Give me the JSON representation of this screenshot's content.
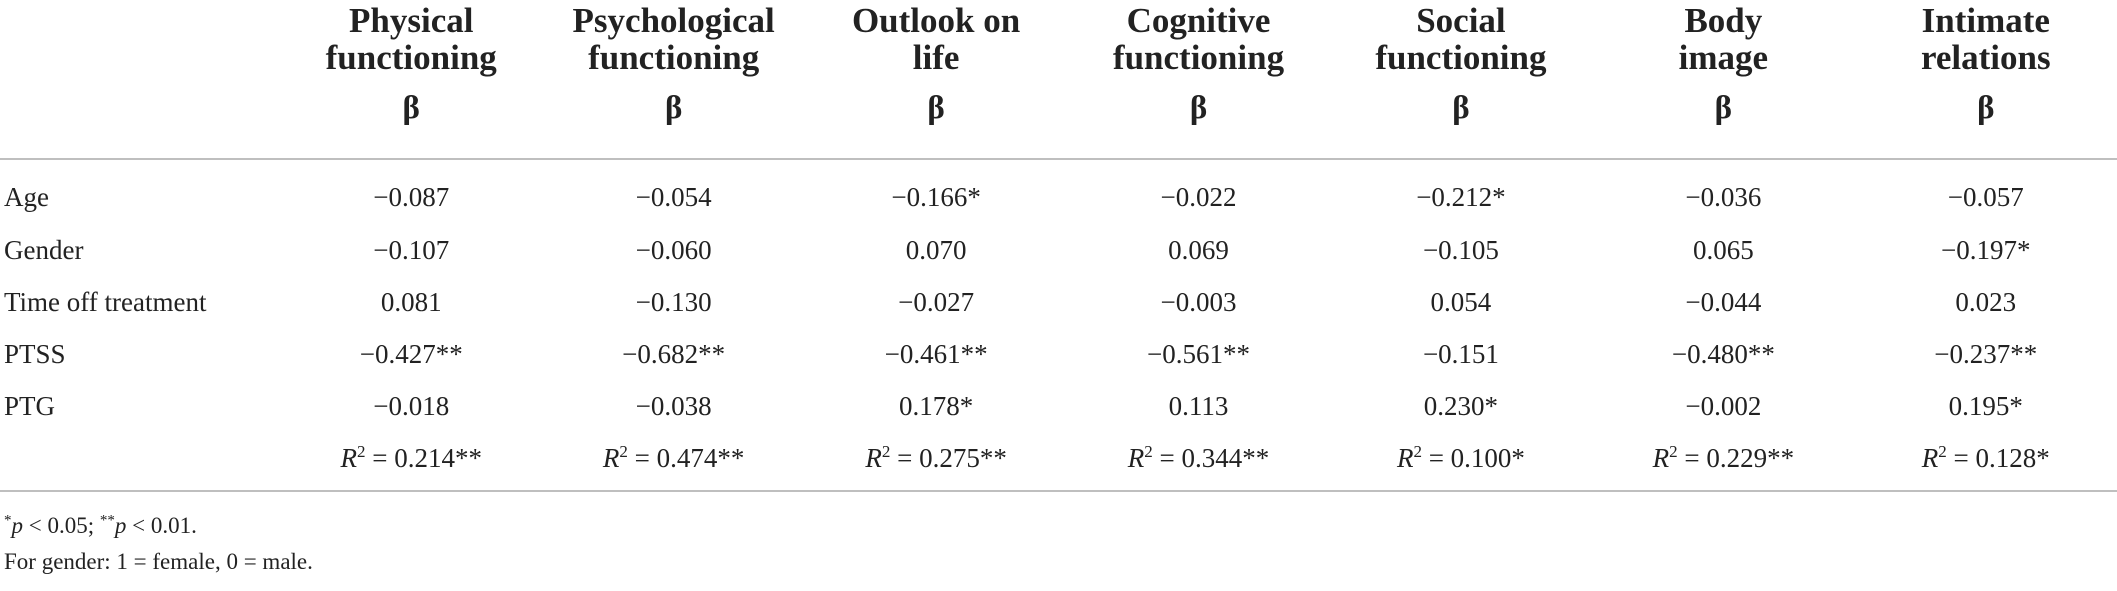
{
  "columns": [
    {
      "line1": "Physical",
      "line2": "functioning",
      "beta": "β"
    },
    {
      "line1": "Psychological",
      "line2": "functioning",
      "beta": "β"
    },
    {
      "line1": "Outlook on",
      "line2": "life",
      "beta": "β"
    },
    {
      "line1": "Cognitive",
      "line2": "functioning",
      "beta": "β"
    },
    {
      "line1": "Social",
      "line2": "functioning",
      "beta": "β"
    },
    {
      "line1": "Body",
      "line2": "image",
      "beta": "β"
    },
    {
      "line1": "Intimate",
      "line2": "relations",
      "beta": "β"
    }
  ],
  "rows": [
    {
      "label": "Age",
      "values": [
        "−0.087",
        "−0.054",
        "−0.166*",
        "−0.022",
        "−0.212*",
        "−0.036",
        "−0.057"
      ]
    },
    {
      "label": "Gender",
      "values": [
        "−0.107",
        "−0.060",
        "0.070",
        "0.069",
        "−0.105",
        "0.065",
        "−0.197*"
      ]
    },
    {
      "label": "Time off treatment",
      "values": [
        "0.081",
        "−0.130",
        "−0.027",
        "−0.003",
        "0.054",
        "−0.044",
        "0.023"
      ]
    },
    {
      "label": "PTSS",
      "values": [
        "−0.427**",
        "−0.682**",
        "−0.461**",
        "−0.561**",
        "−0.151",
        "−0.480**",
        "−0.237**"
      ]
    },
    {
      "label": "PTG",
      "values": [
        "−0.018",
        "−0.038",
        "0.178*",
        "0.113",
        "0.230*",
        "−0.002",
        "0.195*"
      ]
    }
  ],
  "r2": {
    "symbol": "R",
    "exponent": "2",
    "values": [
      " = 0.214**",
      " = 0.474**",
      " = 0.275**",
      " = 0.344**",
      " = 0.100*",
      " = 0.229**",
      " = 0.128*"
    ]
  },
  "footnotes": {
    "star1": "*",
    "p1": "p",
    "text1": " < 0.05; ",
    "star2": "**",
    "p2": "p",
    "text2": " < 0.01.",
    "line2": "For gender: 1 = female, 0 = male."
  }
}
